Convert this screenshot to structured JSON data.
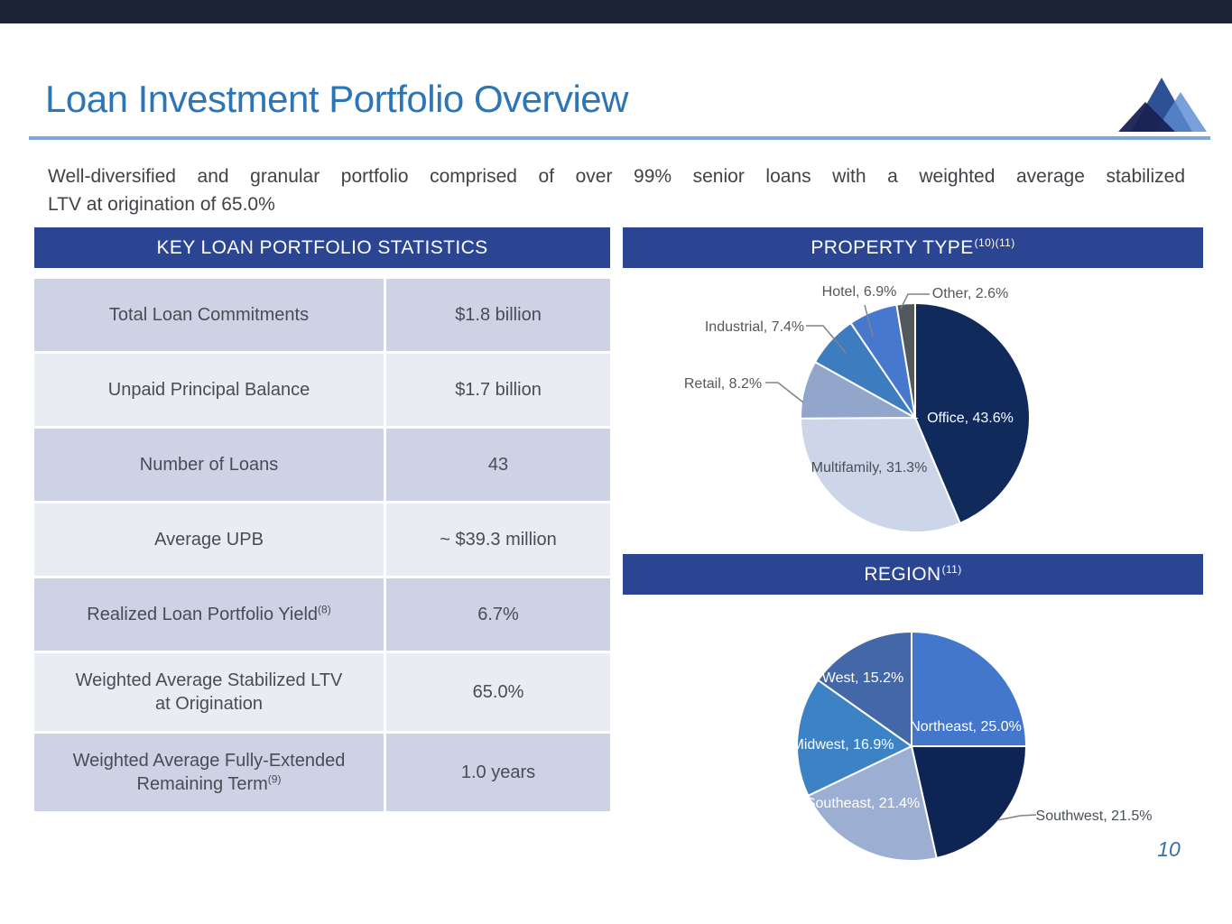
{
  "top_bar": {
    "color": "#1C2537"
  },
  "header": {
    "title": "Loan Investment Portfolio Overview"
  },
  "subtitle": {
    "line1": "Well-diversified and granular portfolio comprised of over 99% senior loans with a weighted average stabilized",
    "line2": "LTV at origination of 65.0%"
  },
  "stats_table": {
    "title": "KEY LOAN PORTFOLIO STATISTICS",
    "rows": [
      {
        "label": "Total Loan Commitments",
        "sup": "",
        "value": "$1.8 billion"
      },
      {
        "label": "Unpaid Principal Balance",
        "sup": "",
        "value": "$1.7 billion"
      },
      {
        "label": "Number of Loans",
        "sup": "",
        "value": "43"
      },
      {
        "label": "Average UPB",
        "sup": "",
        "value": "~ $39.3 million"
      },
      {
        "label": "Realized Loan Portfolio Yield",
        "sup": "(8)",
        "value": "6.7%"
      },
      {
        "label": "Weighted Average Stabilized LTV at Origination",
        "sup": "",
        "value": "65.0%"
      },
      {
        "label": "Weighted Average Fully-Extended Remaining Term",
        "sup": "(9)",
        "value": "1.0 years"
      }
    ]
  },
  "chart_data": [
    {
      "type": "pie",
      "title": "PROPERTY TYPE",
      "title_sup": "(10)(11)",
      "direction": "clockwise",
      "start_angle_deg": 0,
      "legend_position": "none",
      "slices": [
        {
          "label": "Office",
          "value": 43.6,
          "display": "Office, 43.6%"
        },
        {
          "label": "Multifamily",
          "value": 31.3,
          "display": "Multifamily, 31.3%"
        },
        {
          "label": "Retail",
          "value": 8.2,
          "display": "Retail, 8.2%"
        },
        {
          "label": "Industrial",
          "value": 7.4,
          "display": "Industrial, 7.4%"
        },
        {
          "label": "Hotel",
          "value": 6.9,
          "display": "Hotel, 6.9%"
        },
        {
          "label": "Other",
          "value": 2.6,
          "display": "Other, 2.6%"
        }
      ],
      "colors": [
        "#112A5C",
        "#CDD5E8",
        "#92A5CB",
        "#3E7CC0",
        "#4678CD",
        "#53585C"
      ]
    },
    {
      "type": "pie",
      "title": "REGION",
      "title_sup": "(11)",
      "direction": "clockwise",
      "start_angle_deg": 0,
      "legend_position": "none",
      "slices": [
        {
          "label": "Northeast",
          "value": 25.0,
          "display": "Northeast, 25.0%"
        },
        {
          "label": "Southwest",
          "value": 21.5,
          "display": "Southwest, 21.5%"
        },
        {
          "label": "Southeast",
          "value": 21.4,
          "display": "Southeast, 21.4%"
        },
        {
          "label": "Midwest",
          "value": 16.9,
          "display": "Midwest, 16.9%"
        },
        {
          "label": "West",
          "value": 15.2,
          "display": "West, 15.2%"
        }
      ],
      "colors": [
        "#4377CB",
        "#0E2454",
        "#9DAED3",
        "#3E82C6",
        "#4467A8"
      ]
    }
  ],
  "page": {
    "number": "10"
  }
}
